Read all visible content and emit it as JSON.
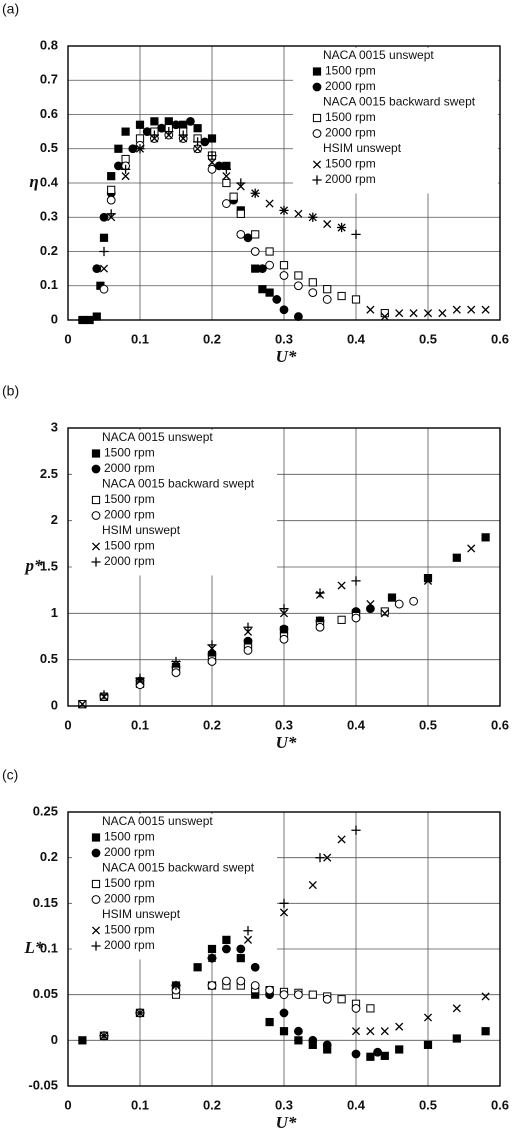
{
  "chart_data": [
    {
      "type": "scatter",
      "label": "(a)",
      "ylabel": "η",
      "xlabel": "U*",
      "xlim": [
        0,
        0.6
      ],
      "xticks": [
        0,
        0.1,
        0.2,
        0.3,
        0.4,
        0.5,
        0.6
      ],
      "ylim": [
        0,
        0.8
      ],
      "yticks": [
        0,
        0.1,
        0.2,
        0.3,
        0.4,
        0.5,
        0.6,
        0.7,
        0.8
      ],
      "grid": true,
      "legend": "upper right",
      "legend_groups": [
        "NACA 0015 unswept",
        "NACA 0015 backward swept",
        "HSIM unswept"
      ],
      "series": [
        {
          "name": "1500 rpm",
          "marker": "filled-square",
          "color": "#000000",
          "x": [
            0.02,
            0.03,
            0.04,
            0.045,
            0.05,
            0.06,
            0.07,
            0.08,
            0.1,
            0.12,
            0.14,
            0.16,
            0.18,
            0.2,
            0.22,
            0.24,
            0.26,
            0.27,
            0.28
          ],
          "y": [
            0,
            0,
            0.01,
            0.1,
            0.24,
            0.42,
            0.5,
            0.55,
            0.57,
            0.58,
            0.58,
            0.57,
            0.56,
            0.53,
            0.45,
            0.32,
            0.15,
            0.09,
            0.08
          ]
        },
        {
          "name": "2000 rpm",
          "marker": "filled-circle",
          "color": "#000000",
          "x": [
            0.04,
            0.05,
            0.06,
            0.07,
            0.09,
            0.11,
            0.13,
            0.15,
            0.17,
            0.19,
            0.21,
            0.23,
            0.25,
            0.27,
            0.29,
            0.3,
            0.32
          ],
          "y": [
            0.15,
            0.3,
            0.37,
            0.45,
            0.5,
            0.55,
            0.56,
            0.57,
            0.58,
            0.52,
            0.45,
            0.35,
            0.24,
            0.15,
            0.06,
            0.03,
            0.01
          ]
        },
        {
          "name": "1500 rpm",
          "marker": "open-square",
          "color": "#000000",
          "x": [
            0.06,
            0.08,
            0.1,
            0.12,
            0.14,
            0.16,
            0.18,
            0.2,
            0.22,
            0.23,
            0.24,
            0.26,
            0.28,
            0.3,
            0.32,
            0.34,
            0.36,
            0.38,
            0.4,
            0.44
          ],
          "y": [
            0.38,
            0.47,
            0.53,
            0.55,
            0.56,
            0.55,
            0.53,
            0.48,
            0.4,
            0.36,
            0.31,
            0.25,
            0.2,
            0.16,
            0.13,
            0.11,
            0.09,
            0.07,
            0.06,
            0.02
          ]
        },
        {
          "name": "2000 rpm",
          "marker": "open-circle",
          "color": "#000000",
          "x": [
            0.05,
            0.06,
            0.08,
            0.1,
            0.12,
            0.14,
            0.16,
            0.18,
            0.2,
            0.22,
            0.24,
            0.26,
            0.28,
            0.3,
            0.32,
            0.34,
            0.36
          ],
          "y": [
            0.09,
            0.35,
            0.45,
            0.51,
            0.53,
            0.54,
            0.53,
            0.5,
            0.44,
            0.34,
            0.25,
            0.2,
            0.16,
            0.13,
            0.1,
            0.08,
            0.06
          ]
        },
        {
          "name": "1500 rpm",
          "marker": "cross",
          "color": "#000000",
          "x": [
            0.05,
            0.06,
            0.08,
            0.1,
            0.12,
            0.14,
            0.16,
            0.18,
            0.2,
            0.22,
            0.24,
            0.26,
            0.28,
            0.3,
            0.32,
            0.34,
            0.36,
            0.38,
            0.42,
            0.44,
            0.46,
            0.48,
            0.5,
            0.52,
            0.54,
            0.56,
            0.58
          ],
          "y": [
            0.15,
            0.3,
            0.42,
            0.5,
            0.53,
            0.54,
            0.53,
            0.5,
            0.46,
            0.42,
            0.39,
            0.37,
            0.34,
            0.32,
            0.31,
            0.3,
            0.28,
            0.27,
            0.03,
            0.01,
            0.02,
            0.02,
            0.02,
            0.02,
            0.03,
            0.03,
            0.03
          ]
        },
        {
          "name": "2000 rpm",
          "marker": "plus",
          "color": "#000000",
          "x": [
            0.05,
            0.06,
            0.08,
            0.1,
            0.12,
            0.14,
            0.16,
            0.18,
            0.2,
            0.22,
            0.24,
            0.26,
            0.3,
            0.34,
            0.38,
            0.4
          ],
          "y": [
            0.2,
            0.31,
            0.44,
            0.5,
            0.54,
            0.55,
            0.54,
            0.52,
            0.48,
            0.44,
            0.4,
            0.37,
            0.32,
            0.3,
            0.27,
            0.25
          ]
        }
      ]
    },
    {
      "type": "scatter",
      "label": "(b)",
      "ylabel": "p*",
      "xlabel": "U*",
      "xlim": [
        0,
        0.6
      ],
      "xticks": [
        0,
        0.1,
        0.2,
        0.3,
        0.4,
        0.5,
        0.6
      ],
      "ylim": [
        0,
        3
      ],
      "yticks": [
        0,
        0.5,
        1,
        1.5,
        2,
        2.5,
        3
      ],
      "grid": true,
      "legend": "upper left",
      "legend_groups": [
        "NACA 0015 unswept",
        "NACA 0015 backward swept",
        "HSIM unswept"
      ],
      "series": [
        {
          "name": "1500 rpm",
          "marker": "filled-square",
          "color": "#000000",
          "x": [
            0.02,
            0.05,
            0.1,
            0.15,
            0.2,
            0.25,
            0.3,
            0.35,
            0.4,
            0.45,
            0.5,
            0.54,
            0.58
          ],
          "y": [
            0.02,
            0.1,
            0.25,
            0.42,
            0.55,
            0.68,
            0.82,
            0.92,
            1.0,
            1.17,
            1.38,
            1.6,
            1.82
          ]
        },
        {
          "name": "2000 rpm",
          "marker": "filled-circle",
          "color": "#000000",
          "x": [
            0.05,
            0.1,
            0.15,
            0.2,
            0.25,
            0.3,
            0.35,
            0.4,
            0.42
          ],
          "y": [
            0.1,
            0.27,
            0.42,
            0.56,
            0.7,
            0.83,
            0.92,
            1.02,
            1.05
          ]
        },
        {
          "name": "1500 rpm",
          "marker": "open-square",
          "color": "#000000",
          "x": [
            0.02,
            0.05,
            0.1,
            0.15,
            0.2,
            0.25,
            0.3,
            0.35,
            0.38,
            0.4,
            0.44
          ],
          "y": [
            0.02,
            0.1,
            0.24,
            0.38,
            0.5,
            0.63,
            0.75,
            0.87,
            0.93,
            0.97,
            1.02
          ]
        },
        {
          "name": "2000 rpm",
          "marker": "open-circle",
          "color": "#000000",
          "x": [
            0.05,
            0.1,
            0.15,
            0.2,
            0.25,
            0.3,
            0.35,
            0.4,
            0.46,
            0.48
          ],
          "y": [
            0.1,
            0.23,
            0.36,
            0.48,
            0.6,
            0.72,
            0.85,
            0.95,
            1.1,
            1.13
          ]
        },
        {
          "name": "1500 rpm",
          "marker": "cross",
          "color": "#000000",
          "x": [
            0.02,
            0.05,
            0.1,
            0.15,
            0.2,
            0.25,
            0.3,
            0.35,
            0.38,
            0.42,
            0.44,
            0.5,
            0.54,
            0.56,
            0.58
          ],
          "y": [
            0.02,
            0.1,
            0.27,
            0.45,
            0.62,
            0.8,
            1.0,
            1.2,
            1.3,
            1.1,
            1.0,
            1.35,
            1.6,
            1.7,
            1.82
          ]
        },
        {
          "name": "2000 rpm",
          "marker": "plus",
          "color": "#000000",
          "x": [
            0.05,
            0.1,
            0.15,
            0.2,
            0.25,
            0.3,
            0.35,
            0.4
          ],
          "y": [
            0.12,
            0.3,
            0.48,
            0.66,
            0.85,
            1.05,
            1.22,
            1.35
          ]
        }
      ]
    },
    {
      "type": "scatter",
      "label": "(c)",
      "ylabel": "L*",
      "xlabel": "U*",
      "xlim": [
        0,
        0.6
      ],
      "xticks": [
        0,
        0.1,
        0.2,
        0.3,
        0.4,
        0.5,
        0.6
      ],
      "ylim": [
        -0.05,
        0.25
      ],
      "yticks": [
        -0.05,
        0,
        0.05,
        0.1,
        0.15,
        0.2,
        0.25
      ],
      "grid": true,
      "legend": "upper left",
      "legend_groups": [
        "NACA 0015 unswept",
        "NACA 0015 backward swept",
        "HSIM unswept"
      ],
      "series": [
        {
          "name": "1500 rpm",
          "marker": "filled-square",
          "color": "#000000",
          "x": [
            0.02,
            0.05,
            0.1,
            0.15,
            0.18,
            0.2,
            0.22,
            0.24,
            0.26,
            0.28,
            0.3,
            0.32,
            0.34,
            0.36,
            0.42,
            0.44,
            0.46,
            0.5,
            0.54,
            0.58
          ],
          "y": [
            0,
            0.005,
            0.03,
            0.06,
            0.08,
            0.1,
            0.11,
            0.09,
            0.05,
            0.02,
            0.01,
            0,
            -0.005,
            -0.01,
            -0.018,
            -0.017,
            -0.01,
            -0.005,
            0.002,
            0.01
          ]
        },
        {
          "name": "2000 rpm",
          "marker": "filled-circle",
          "color": "#000000",
          "x": [
            0.05,
            0.1,
            0.15,
            0.2,
            0.22,
            0.24,
            0.26,
            0.28,
            0.3,
            0.32,
            0.34,
            0.36,
            0.4,
            0.43
          ],
          "y": [
            0.005,
            0.03,
            0.06,
            0.09,
            0.1,
            0.1,
            0.08,
            0.05,
            0.03,
            0.01,
            0,
            -0.005,
            -0.015,
            -0.013
          ]
        },
        {
          "name": "1500 rpm",
          "marker": "open-square",
          "color": "#000000",
          "x": [
            0.05,
            0.1,
            0.15,
            0.2,
            0.22,
            0.24,
            0.26,
            0.28,
            0.3,
            0.32,
            0.34,
            0.36,
            0.38,
            0.4,
            0.42
          ],
          "y": [
            0.005,
            0.03,
            0.05,
            0.06,
            0.06,
            0.06,
            0.056,
            0.055,
            0.053,
            0.052,
            0.05,
            0.048,
            0.045,
            0.04,
            0.035
          ]
        },
        {
          "name": "2000 rpm",
          "marker": "open-circle",
          "color": "#000000",
          "x": [
            0.05,
            0.1,
            0.15,
            0.2,
            0.22,
            0.24,
            0.26,
            0.28,
            0.3,
            0.32,
            0.36,
            0.4
          ],
          "y": [
            0.005,
            0.03,
            0.055,
            0.06,
            0.065,
            0.065,
            0.06,
            0.055,
            0.05,
            0.05,
            0.045,
            0.035
          ]
        },
        {
          "name": "1500 rpm",
          "marker": "cross",
          "color": "#000000",
          "x": [
            0.02,
            0.05,
            0.1,
            0.15,
            0.2,
            0.25,
            0.3,
            0.34,
            0.36,
            0.38,
            0.4,
            0.42,
            0.44,
            0.46,
            0.5,
            0.54,
            0.58
          ],
          "y": [
            0,
            0.005,
            0.03,
            0.06,
            0.09,
            0.11,
            0.14,
            0.17,
            0.2,
            0.22,
            0.01,
            0.01,
            0.01,
            0.015,
            0.025,
            0.035,
            0.048
          ]
        },
        {
          "name": "2000 rpm",
          "marker": "plus",
          "color": "#000000",
          "x": [
            0.05,
            0.1,
            0.15,
            0.2,
            0.25,
            0.3,
            0.35,
            0.4
          ],
          "y": [
            0.005,
            0.03,
            0.06,
            0.09,
            0.12,
            0.15,
            0.2,
            0.23
          ]
        }
      ]
    }
  ]
}
